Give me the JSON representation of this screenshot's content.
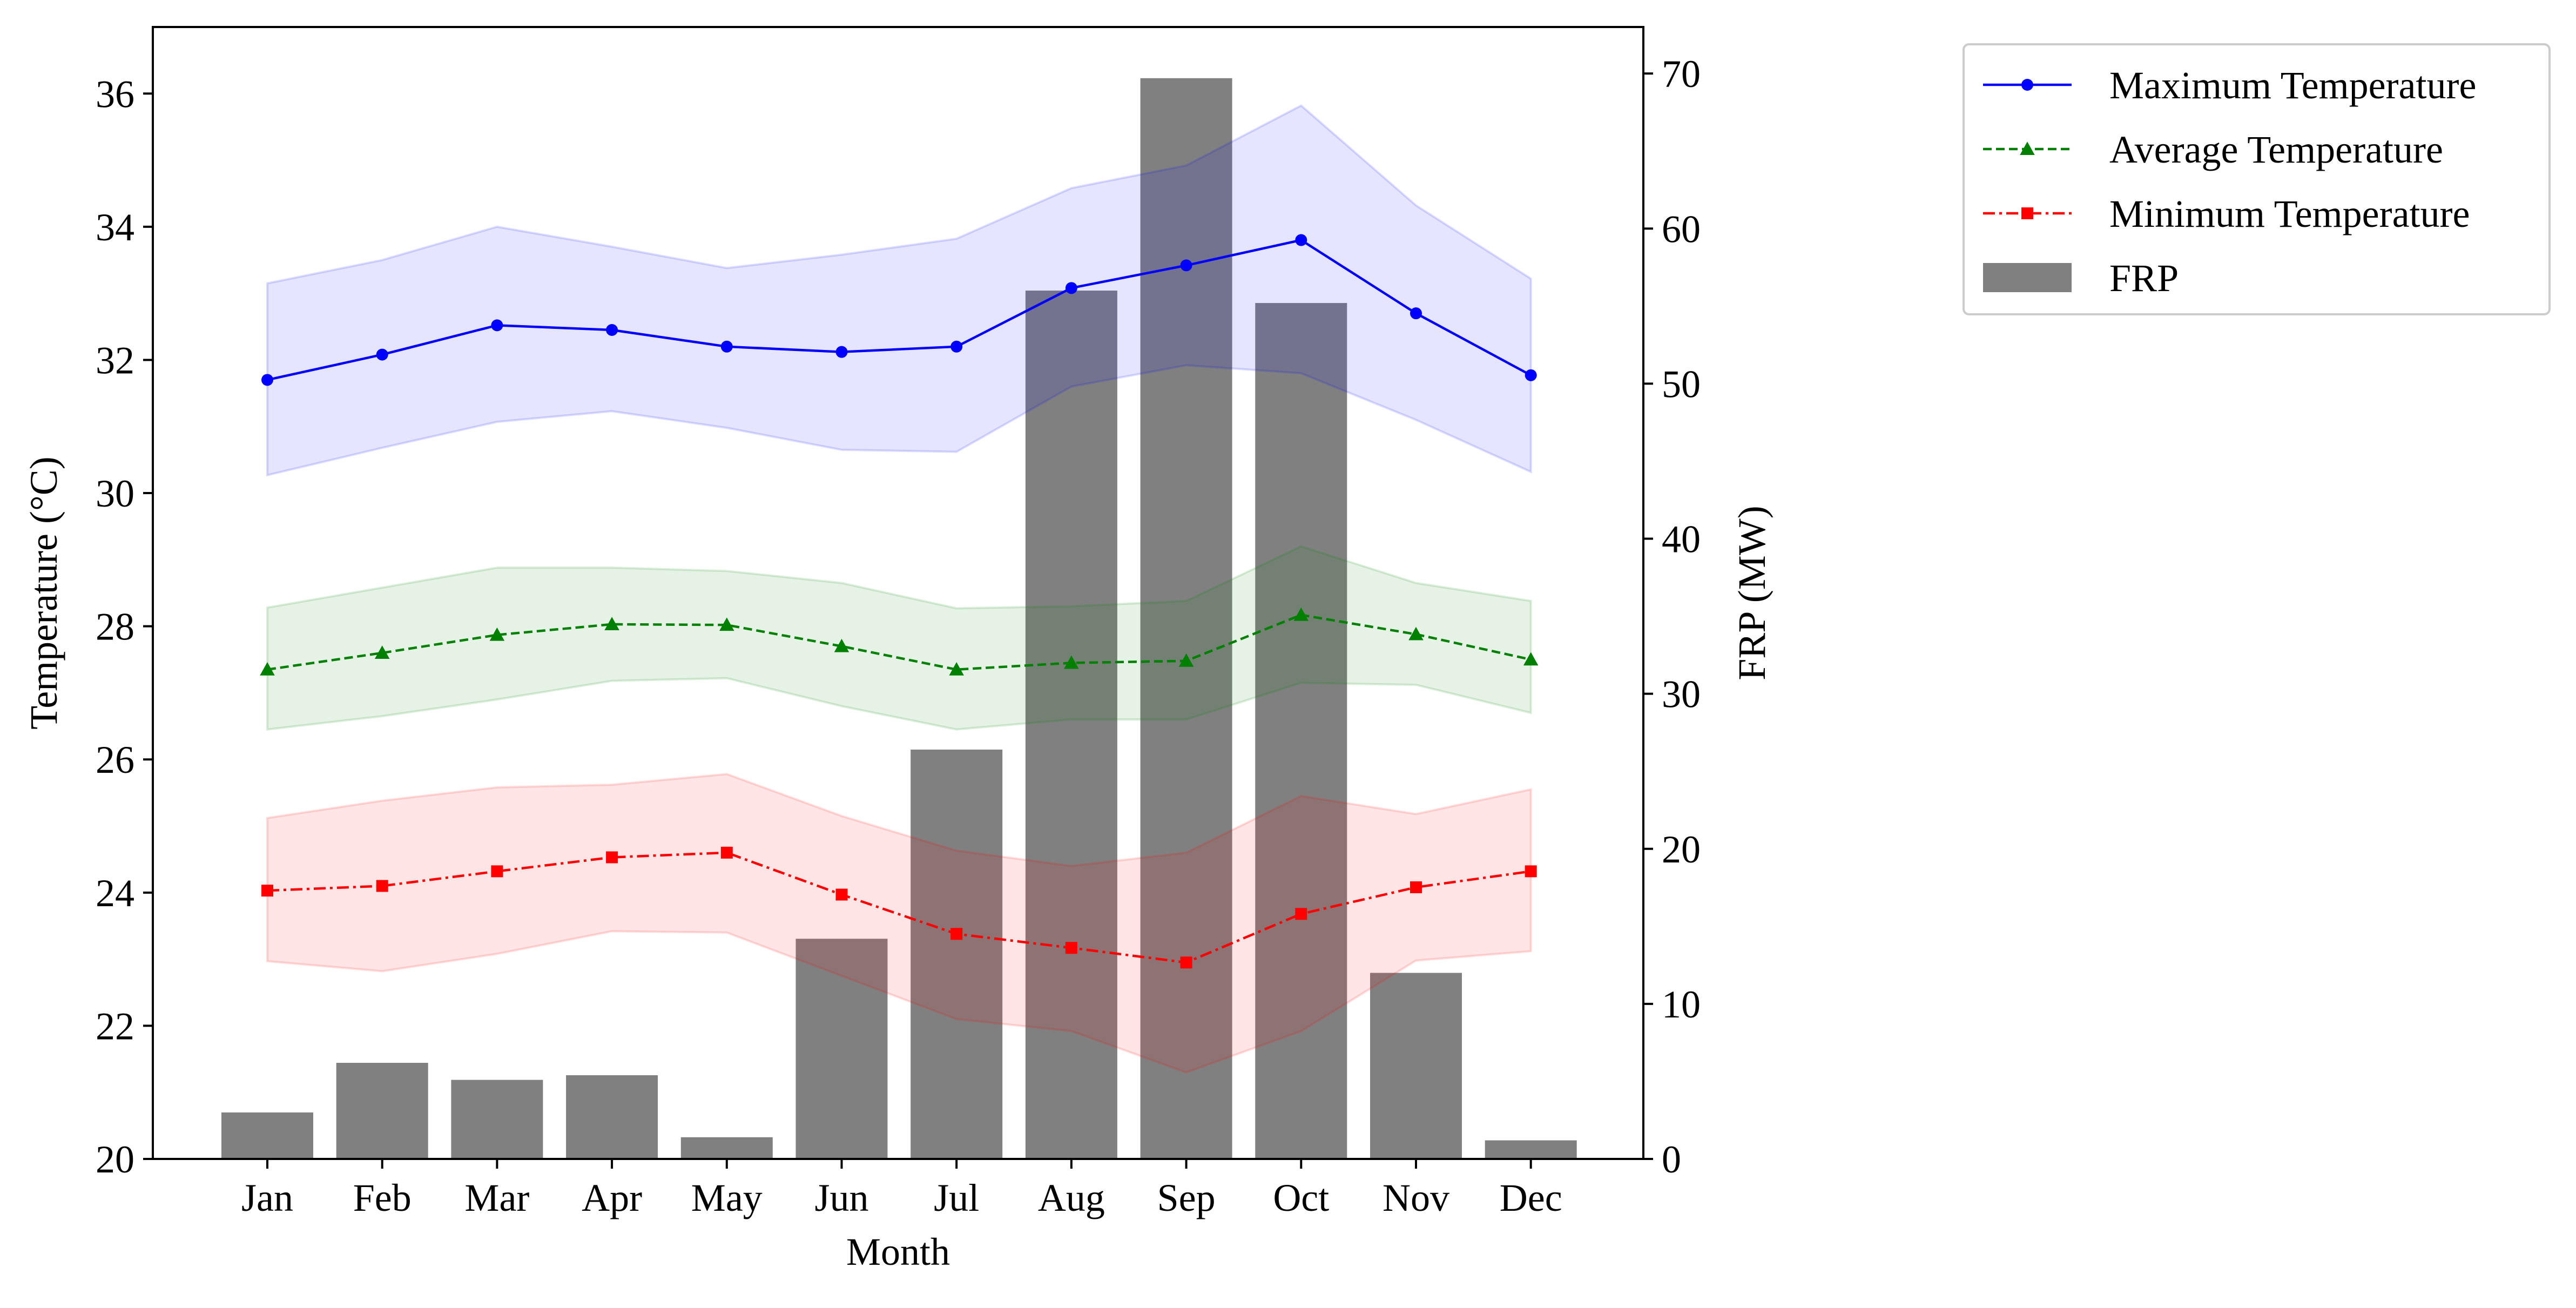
{
  "chart_data": {
    "type": "line",
    "categories": [
      "Jan",
      "Feb",
      "Mar",
      "Apr",
      "May",
      "Jun",
      "Jul",
      "Aug",
      "Sep",
      "Oct",
      "Nov",
      "Dec"
    ],
    "xlabel": "Month",
    "ylabel": "Temperature (°C)",
    "y2label": "FRP (MW)",
    "ylim": [
      20,
      37
    ],
    "y2lim": [
      0,
      73
    ],
    "yticks": [
      20,
      22,
      24,
      26,
      28,
      30,
      32,
      34,
      36
    ],
    "y2ticks": [
      0,
      10,
      20,
      30,
      40,
      50,
      60,
      70
    ],
    "legend_position": "outside-top-right",
    "series": [
      {
        "name": "Maximum Temperature",
        "color": "#0000ff",
        "linestyle": "solid",
        "marker": "circle",
        "values": [
          31.7,
          32.08,
          32.52,
          32.45,
          32.2,
          32.12,
          32.2,
          33.08,
          33.42,
          33.8,
          32.7,
          31.77
        ],
        "band_upper": [
          33.15,
          33.5,
          34.0,
          33.7,
          33.38,
          33.58,
          33.82,
          34.58,
          34.92,
          35.82,
          34.32,
          33.22
        ],
        "band_lower": [
          30.27,
          30.68,
          31.07,
          31.23,
          30.98,
          30.65,
          30.62,
          31.6,
          31.92,
          31.8,
          31.1,
          30.32
        ],
        "band_color": "#0000ff"
      },
      {
        "name": "Average Temperature",
        "color": "#008000",
        "linestyle": "dashed",
        "marker": "triangle",
        "values": [
          27.35,
          27.6,
          27.87,
          28.03,
          28.02,
          27.7,
          27.35,
          27.45,
          27.48,
          28.17,
          27.88,
          27.5
        ],
        "band_upper": [
          28.28,
          28.58,
          28.88,
          28.88,
          28.83,
          28.65,
          28.27,
          28.3,
          28.38,
          29.2,
          28.65,
          28.38
        ],
        "band_lower": [
          26.45,
          26.65,
          26.9,
          27.18,
          27.22,
          26.8,
          26.45,
          26.6,
          26.6,
          27.15,
          27.12,
          26.7
        ],
        "band_color": "#008000"
      },
      {
        "name": "Minimum Temperature",
        "color": "#ff0000",
        "linestyle": "dashdot",
        "marker": "square",
        "values": [
          24.03,
          24.1,
          24.32,
          24.53,
          24.6,
          23.97,
          23.38,
          23.17,
          22.95,
          23.68,
          24.08,
          24.32
        ],
        "band_upper": [
          25.12,
          25.38,
          25.58,
          25.62,
          25.78,
          25.15,
          24.63,
          24.4,
          24.6,
          25.45,
          25.18,
          25.55
        ],
        "band_lower": [
          22.97,
          22.82,
          23.08,
          23.42,
          23.4,
          22.75,
          22.1,
          21.92,
          21.3,
          21.92,
          22.98,
          23.12
        ],
        "band_color": "#ff0000"
      },
      {
        "name": "FRP",
        "type": "bar",
        "axis": "right",
        "color": "#808080",
        "values": [
          3.0,
          6.2,
          5.1,
          5.4,
          1.4,
          14.2,
          26.4,
          56.0,
          69.7,
          55.2,
          12.0,
          1.2
        ]
      }
    ]
  }
}
